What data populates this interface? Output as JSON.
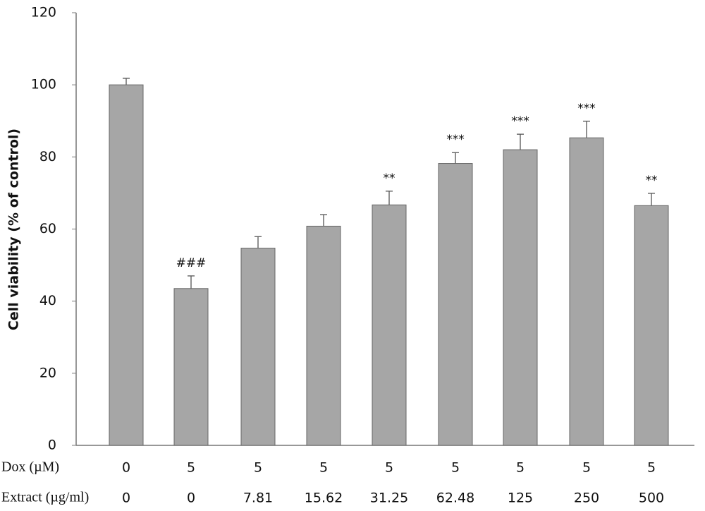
{
  "chart_data": {
    "type": "bar",
    "y_label": "Cell viability (% of control)",
    "category_rows": [
      {
        "label": "Dox (µM)",
        "values": [
          "0",
          "5",
          "5",
          "5",
          "5",
          "5",
          "5",
          "5",
          "5"
        ]
      },
      {
        "label": "Extract (µg/ml)",
        "values": [
          "0",
          "0",
          "7.81",
          "15.62",
          "31.25",
          "62.48",
          "125",
          "250",
          "500"
        ]
      }
    ],
    "values": [
      100,
      43.5,
      54.7,
      60.8,
      66.7,
      78.2,
      82,
      85.3,
      66.5
    ],
    "errors": [
      1.8,
      3.5,
      3.2,
      3.2,
      3.8,
      3,
      4.3,
      4.6,
      3.4
    ],
    "annotations": [
      null,
      "###",
      null,
      null,
      "**",
      "***",
      "***",
      "***",
      "**"
    ],
    "color": "#a6a6a6",
    "ylim": [
      0,
      120
    ],
    "yticks": [
      0,
      20,
      40,
      60,
      80,
      100,
      120
    ],
    "grid": false
  }
}
